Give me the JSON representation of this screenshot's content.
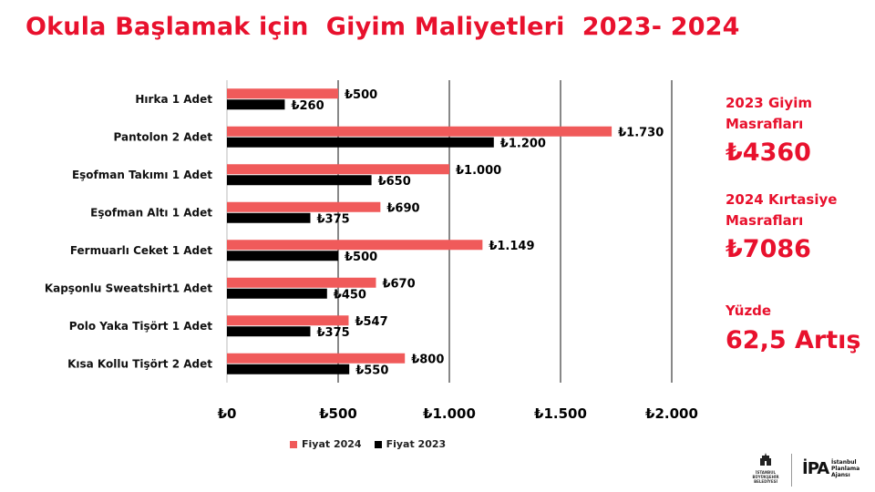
{
  "title": "Okula Başlamak için  Giyim Maliyetleri  2023- 2024",
  "colors": {
    "accent": "#e8112d",
    "series_2024": "#f05a5a",
    "series_2023": "#000000"
  },
  "chart_data": {
    "type": "bar",
    "orientation": "horizontal",
    "categories": [
      "Hırka 1 Adet",
      "Pantolon 2  Adet",
      "Eşofman Takımı 1 Adet",
      "Eşofman Altı 1 Adet",
      "Fermuarlı Ceket 1 Adet",
      "Kapşonlu Sweatshirt1 Adet",
      "Polo Yaka Tişört 1 Adet",
      "Kısa Kollu Tişört  2 Adet"
    ],
    "series": [
      {
        "name": "Fiyat 2024",
        "color": "#f05a5a",
        "values": [
          500,
          1730,
          1000,
          690,
          1149,
          670,
          547,
          800
        ],
        "labels": [
          "₺500",
          "₺1.730",
          "₺1.000",
          "₺690",
          "₺1.149",
          "₺670",
          "₺547",
          "₺800"
        ]
      },
      {
        "name": "Fiyat 2023",
        "color": "#000000",
        "values": [
          260,
          1200,
          650,
          375,
          500,
          450,
          375,
          550
        ],
        "labels": [
          "₺260",
          "₺1.200",
          "₺650",
          "₺375",
          "₺500",
          "₺450",
          "₺375",
          "₺550"
        ]
      }
    ],
    "xlim": [
      0,
      2000
    ],
    "xticks": [
      0,
      500,
      1000,
      1500,
      2000
    ],
    "xtick_labels": [
      "₺0",
      "₺500",
      "₺1.000",
      "₺1.500",
      "₺2.000"
    ],
    "grid": "vertical",
    "legend": "bottom"
  },
  "side": {
    "label_2023": "2023 Giyim Masrafları",
    "value_2023": "₺4360",
    "label_2024": "2024 Kırtasiye Masrafları",
    "value_2024": "₺7086",
    "label_pct": "Yüzde",
    "value_pct": "62,5 Artış"
  },
  "logos": {
    "ibb_lines": [
      "İSTANBUL",
      "BÜYÜKŞEHİR",
      "BELEDİYESİ"
    ],
    "ipa_mark": "İPA",
    "ipa_lines": [
      "İstanbul",
      "Planlama",
      "Ajansı"
    ]
  }
}
